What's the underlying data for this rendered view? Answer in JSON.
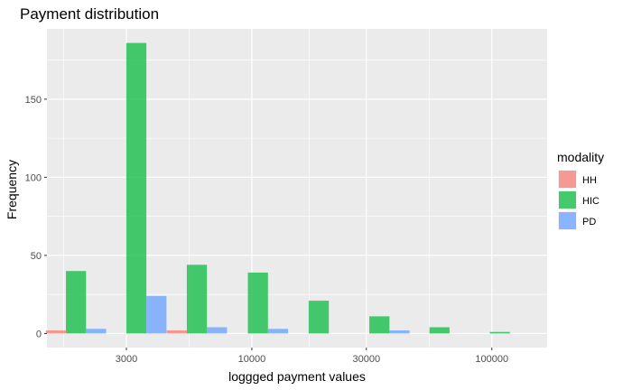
{
  "chart_data": {
    "type": "bar",
    "title": "Payment distribution",
    "xlabel": "loggged payment values",
    "ylabel": "Frequency",
    "x_scale": "log10",
    "xlim": [
      1400,
      170000
    ],
    "ylim": [
      -9,
      195
    ],
    "x_ticks": [
      3000,
      10000,
      30000,
      100000
    ],
    "x_tick_labels": [
      "3000",
      "10000",
      "30000",
      "100000"
    ],
    "y_ticks": [
      0,
      50,
      100,
      150
    ],
    "y_tick_labels": [
      "0",
      "50",
      "100",
      "150"
    ],
    "bin_centers": [
      1850,
      3300,
      5900,
      10600,
      19000,
      34000,
      60500,
      108000
    ],
    "grid": true,
    "legend": {
      "title": "modality",
      "position": "right"
    },
    "series": [
      {
        "name": "HH",
        "color": "#F8766D",
        "values": [
          2,
          0,
          2,
          0,
          0,
          0,
          0,
          0
        ]
      },
      {
        "name": "HIC",
        "color": "#00BA38",
        "values": [
          40,
          186,
          44,
          39,
          21,
          11,
          4,
          1
        ]
      },
      {
        "name": "PD",
        "color": "#619CFF",
        "values": [
          3,
          24,
          4,
          3,
          0,
          2,
          0,
          0
        ]
      }
    ]
  }
}
